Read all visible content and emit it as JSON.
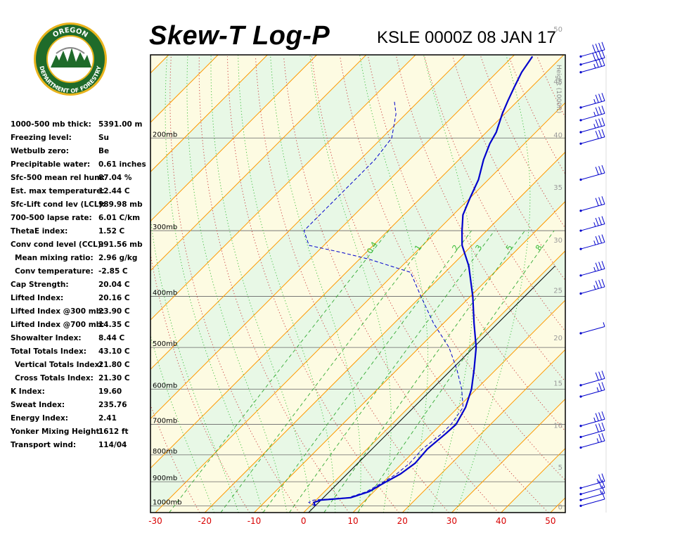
{
  "header": {
    "title": "Skew-T Log-P",
    "station_time": "KSLE 0000Z 08 JAN 17"
  },
  "logo": {
    "top_text": "OREGON",
    "ring_text": "DEPARTMENT OF FORESTRY",
    "colors": {
      "ring": "#1f6b2a",
      "gold": "#e8b31c",
      "sky": "#ffffff"
    }
  },
  "stats": [
    {
      "label": "1000-500 mb thick:",
      "value": "5391.00 m"
    },
    {
      "label": "Freezing level:",
      "value": "Su"
    },
    {
      "label": "Wetbulb zero:",
      "value": "Be"
    },
    {
      "label": "Precipitable water:",
      "value": "0.61 inches"
    },
    {
      "label": "Sfc-500 mean rel hum:",
      "value": "87.04 %"
    },
    {
      "label": "Est. max temperature:",
      "value": "12.44 C"
    },
    {
      "label": "Sfc-Lift cond lev (LCL):",
      "value": "989.98 mb"
    },
    {
      "label": "700-500 lapse rate:",
      "value": "6.01 C/km"
    },
    {
      "label": "ThetaE index:",
      "value": "1.52 C"
    },
    {
      "label": "Conv cond level (CCL):",
      "value": "991.56 mb"
    },
    {
      "label": "Mean mixing ratio:",
      "value": "2.96 g/kg",
      "indent": true
    },
    {
      "label": "Conv temperature:",
      "value": "-2.85 C",
      "indent": true
    },
    {
      "label": "Cap Strength:",
      "value": "20.04 C"
    },
    {
      "label": "Lifted Index:",
      "value": "20.16 C"
    },
    {
      "label": "Lifted Index @300 mb:",
      "value": "23.90 C"
    },
    {
      "label": "Lifted Index @700 mb:",
      "value": "14.35 C"
    },
    {
      "label": "Showalter Index:",
      "value": "8.44 C"
    },
    {
      "label": "Total Totals Index:",
      "value": "43.10 C"
    },
    {
      "label": "Vertical Totals Index:",
      "value": "21.80 C",
      "indent": true
    },
    {
      "label": "Cross Totals Index:",
      "value": "21.30 C",
      "indent": true
    },
    {
      "label": "K Index:",
      "value": "19.60"
    },
    {
      "label": "Sweat Index:",
      "value": "235.76"
    },
    {
      "label": "Energy Index:",
      "value": "2.41"
    },
    {
      "label": "Yonker Mixing Height:",
      "value": "1612 ft"
    },
    {
      "label": "Transport wind:",
      "value": "114/04"
    }
  ],
  "chart_data": {
    "type": "line",
    "x_axis": {
      "ticks": [
        -30,
        -20,
        -10,
        0,
        10,
        20,
        30,
        40,
        50
      ],
      "range": [
        -31,
        53
      ],
      "color": "#d80000"
    },
    "pressure_levels": [
      {
        "p": 200,
        "label": "200mb"
      },
      {
        "p": 300,
        "label": "300mb"
      },
      {
        "p": 400,
        "label": "400mb"
      },
      {
        "p": 500,
        "label": "500mb"
      },
      {
        "p": 600,
        "label": "600mb"
      },
      {
        "p": 700,
        "label": "700mb"
      },
      {
        "p": 800,
        "label": "800mb"
      },
      {
        "p": 900,
        "label": "900mb"
      },
      {
        "p": 1000,
        "label": "1000mb"
      }
    ],
    "pressure_range": [
      139,
      1030
    ],
    "height_axis": {
      "label": "Height (1000ft)",
      "ticks": [
        {
          "label": "0",
          "p": 1003
        },
        {
          "label": "5",
          "p": 843
        },
        {
          "label": "10",
          "p": 702
        },
        {
          "label": "15",
          "p": 584
        },
        {
          "label": "20",
          "p": 479
        },
        {
          "label": "25",
          "p": 389
        },
        {
          "label": "30",
          "p": 312
        },
        {
          "label": "35",
          "p": 248
        },
        {
          "label": "40",
          "p": 197
        },
        {
          "label": "45",
          "p": 156
        },
        {
          "label": "50",
          "p": 124
        }
      ]
    },
    "mixing_ratio_labels": [
      "0.4",
      "1",
      "2",
      "3",
      "5",
      "8"
    ],
    "mixing_ratio_values": [
      0.4,
      1,
      2,
      3,
      5,
      8
    ],
    "series": [
      {
        "kind": "temperature",
        "color": "#0000cc",
        "points": [
          [
            1000,
            1.0
          ],
          [
            985,
            0.0
          ],
          [
            975,
            1.0
          ],
          [
            965,
            6.5
          ],
          [
            940,
            9.0
          ],
          [
            900,
            10.5
          ],
          [
            870,
            11.8
          ],
          [
            830,
            12.6
          ],
          [
            780,
            12.2
          ],
          [
            730,
            12.8
          ],
          [
            700,
            13.0
          ],
          [
            650,
            11.5
          ],
          [
            600,
            9.0
          ],
          [
            550,
            5.5
          ],
          [
            500,
            1.5
          ],
          [
            450,
            -3.8
          ],
          [
            400,
            -9.5
          ],
          [
            350,
            -16.5
          ],
          [
            320,
            -22.0
          ],
          [
            300,
            -25.0
          ],
          [
            280,
            -28.0
          ],
          [
            260,
            -30.0
          ],
          [
            240,
            -32.0
          ],
          [
            220,
            -35.0
          ],
          [
            205,
            -37.0
          ],
          [
            195,
            -38.0
          ],
          [
            180,
            -40.5
          ],
          [
            170,
            -42.0
          ],
          [
            160,
            -43.5
          ],
          [
            150,
            -45.0
          ],
          [
            140,
            -46.0
          ]
        ]
      },
      {
        "kind": "dewpoint",
        "color": "#0000cc",
        "points": [
          [
            1000,
            1.0
          ],
          [
            985,
            -1.0
          ],
          [
            975,
            -0.5
          ],
          [
            965,
            6.0
          ],
          [
            940,
            8.5
          ],
          [
            900,
            10.0
          ],
          [
            870,
            11.0
          ],
          [
            830,
            11.5
          ],
          [
            780,
            11.2
          ],
          [
            730,
            12.0
          ],
          [
            700,
            12.0
          ],
          [
            650,
            11.0
          ],
          [
            600,
            7.0
          ],
          [
            550,
            2.0
          ],
          [
            500,
            -4.0
          ],
          [
            450,
            -12.0
          ],
          [
            400,
            -20.0
          ],
          [
            360,
            -27.0
          ],
          [
            340,
            -38.0
          ],
          [
            330,
            -45.0
          ],
          [
            320,
            -53.0
          ],
          [
            300,
            -57.0
          ],
          [
            270,
            -57.0
          ],
          [
            240,
            -57.0
          ],
          [
            220,
            -57.0
          ],
          [
            200,
            -58.0
          ],
          [
            180,
            -62.0
          ],
          [
            170,
            -65.0
          ]
        ]
      }
    ],
    "dry_adiabats_theta": [
      230,
      240,
      250,
      260,
      270,
      280,
      290,
      300,
      310,
      320,
      330,
      340,
      350,
      360,
      370,
      380,
      390,
      400,
      410,
      420,
      430,
      440,
      450,
      460,
      470
    ],
    "moist_adiabats_c": [
      -20,
      -15,
      -10,
      -5,
      0,
      5,
      10,
      15,
      20,
      25,
      30
    ],
    "wind_barbs": [
      {
        "p": 1000,
        "speed": 10,
        "dir": 200
      },
      {
        "p": 975,
        "speed": 15,
        "dir": 240
      },
      {
        "p": 950,
        "speed": 20,
        "dir": 280
      },
      {
        "p": 925,
        "speed": 25,
        "dir": 300
      },
      {
        "p": 775,
        "speed": 25,
        "dir": 300
      },
      {
        "p": 740,
        "speed": 30,
        "dir": 300
      },
      {
        "p": 705,
        "speed": 35,
        "dir": 300
      },
      {
        "p": 620,
        "speed": 25,
        "dir": 290
      },
      {
        "p": 590,
        "speed": 30,
        "dir": 290
      },
      {
        "p": 470,
        "speed": 5,
        "dir": 280
      },
      {
        "p": 395,
        "speed": 35,
        "dir": 290
      },
      {
        "p": 365,
        "speed": 35,
        "dir": 290
      },
      {
        "p": 325,
        "speed": 35,
        "dir": 300
      },
      {
        "p": 300,
        "speed": 35,
        "dir": 300
      },
      {
        "p": 275,
        "speed": 30,
        "dir": 300
      },
      {
        "p": 240,
        "speed": 30,
        "dir": 300
      },
      {
        "p": 205,
        "speed": 30,
        "dir": 300
      },
      {
        "p": 195,
        "speed": 35,
        "dir": 300
      },
      {
        "p": 185,
        "speed": 35,
        "dir": 300
      },
      {
        "p": 175,
        "speed": 35,
        "dir": 300
      },
      {
        "p": 150,
        "speed": 35,
        "dir": 300
      },
      {
        "p": 145,
        "speed": 40,
        "dir": 300
      },
      {
        "p": 140,
        "speed": 40,
        "dir": 300
      },
      {
        "p": 132,
        "speed": 45,
        "dir": 300
      },
      {
        "p": 118,
        "speed": 30,
        "dir": 300
      },
      {
        "p": 110,
        "speed": 35,
        "dir": 300
      },
      {
        "p": 100,
        "speed": 35,
        "dir": 290
      }
    ],
    "colors": {
      "isotherm": "#ff9900",
      "dry_adiabat": "#cc4444",
      "moist_adiabat": "#33bb33",
      "mixing_ratio": "#33aa33",
      "isobar": "#666666",
      "band_warm": "#fdfbe2",
      "band_cool": "#e8f8e6"
    }
  }
}
